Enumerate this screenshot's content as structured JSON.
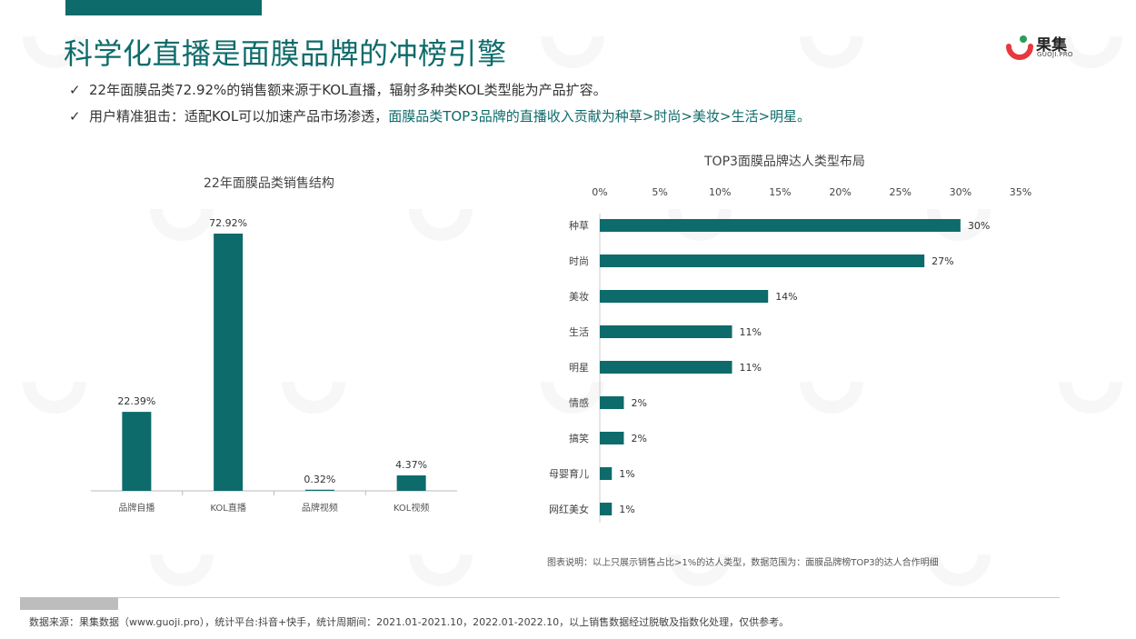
{
  "title": "科学化直播是面膜品牌的冲榜引擎",
  "logo": {
    "name": "果集",
    "sub": "GUOJI.PRO"
  },
  "bullets": [
    {
      "check": "✓",
      "text": "22年面膜品类72.92%的销售额来源于KOL直播，辐射多种类KOL类型能为产品扩容。",
      "highlight": ""
    },
    {
      "check": "✓",
      "text": "用户精准狙击：适配KOL可以加速产品市场渗透，",
      "highlight": "面膜品类TOP3品牌的直播收入贡献为种草>时尚>美妆>生活>明星。"
    }
  ],
  "chart_data": [
    {
      "type": "bar",
      "title": "22年面膜品类销售结构",
      "categories": [
        "品牌自播",
        "KOL直播",
        "品牌视频",
        "KOL视频"
      ],
      "values": [
        22.39,
        72.92,
        0.32,
        4.37
      ],
      "value_labels": [
        "22.39%",
        "72.92%",
        "0.32%",
        "4.37%"
      ],
      "ylim": [
        0,
        80
      ],
      "color": "#0e6b6b",
      "grid": false
    },
    {
      "type": "bar",
      "orientation": "horizontal",
      "title": "TOP3面膜品牌达人类型布局",
      "categories": [
        "种草",
        "时尚",
        "美妆",
        "生活",
        "明星",
        "情感",
        "搞笑",
        "母婴育儿",
        "网红美女"
      ],
      "values": [
        30,
        27,
        14,
        11,
        11,
        2,
        2,
        1,
        1
      ],
      "value_labels": [
        "30%",
        "27%",
        "14%",
        "11%",
        "11%",
        "2%",
        "2%",
        "1%",
        "1%"
      ],
      "xlim": [
        0,
        35
      ],
      "xticks": [
        "0%",
        "5%",
        "10%",
        "15%",
        "20%",
        "25%",
        "30%",
        "35%"
      ],
      "xtick_values": [
        0,
        5,
        10,
        15,
        20,
        25,
        30,
        35
      ],
      "axis_position": "top",
      "color": "#0e6b6b",
      "grid": false
    }
  ],
  "chart_note": "图表说明：以上只展示销售占比>1%的达人类型，数据范围为：面膜品牌榜TOP3的达人合作明细",
  "source": "数据来源：果集数据（www.guoji.pro），统计平台:抖音+快手，统计周期间：2021.01-2021.10，2022.01-2022.10，以上销售数据经过脱敏及指数化处理，仅供参考。",
  "colors": {
    "accent": "#0e6b6b",
    "logo_red": "#e8383d",
    "logo_green": "#2a9d5c"
  }
}
